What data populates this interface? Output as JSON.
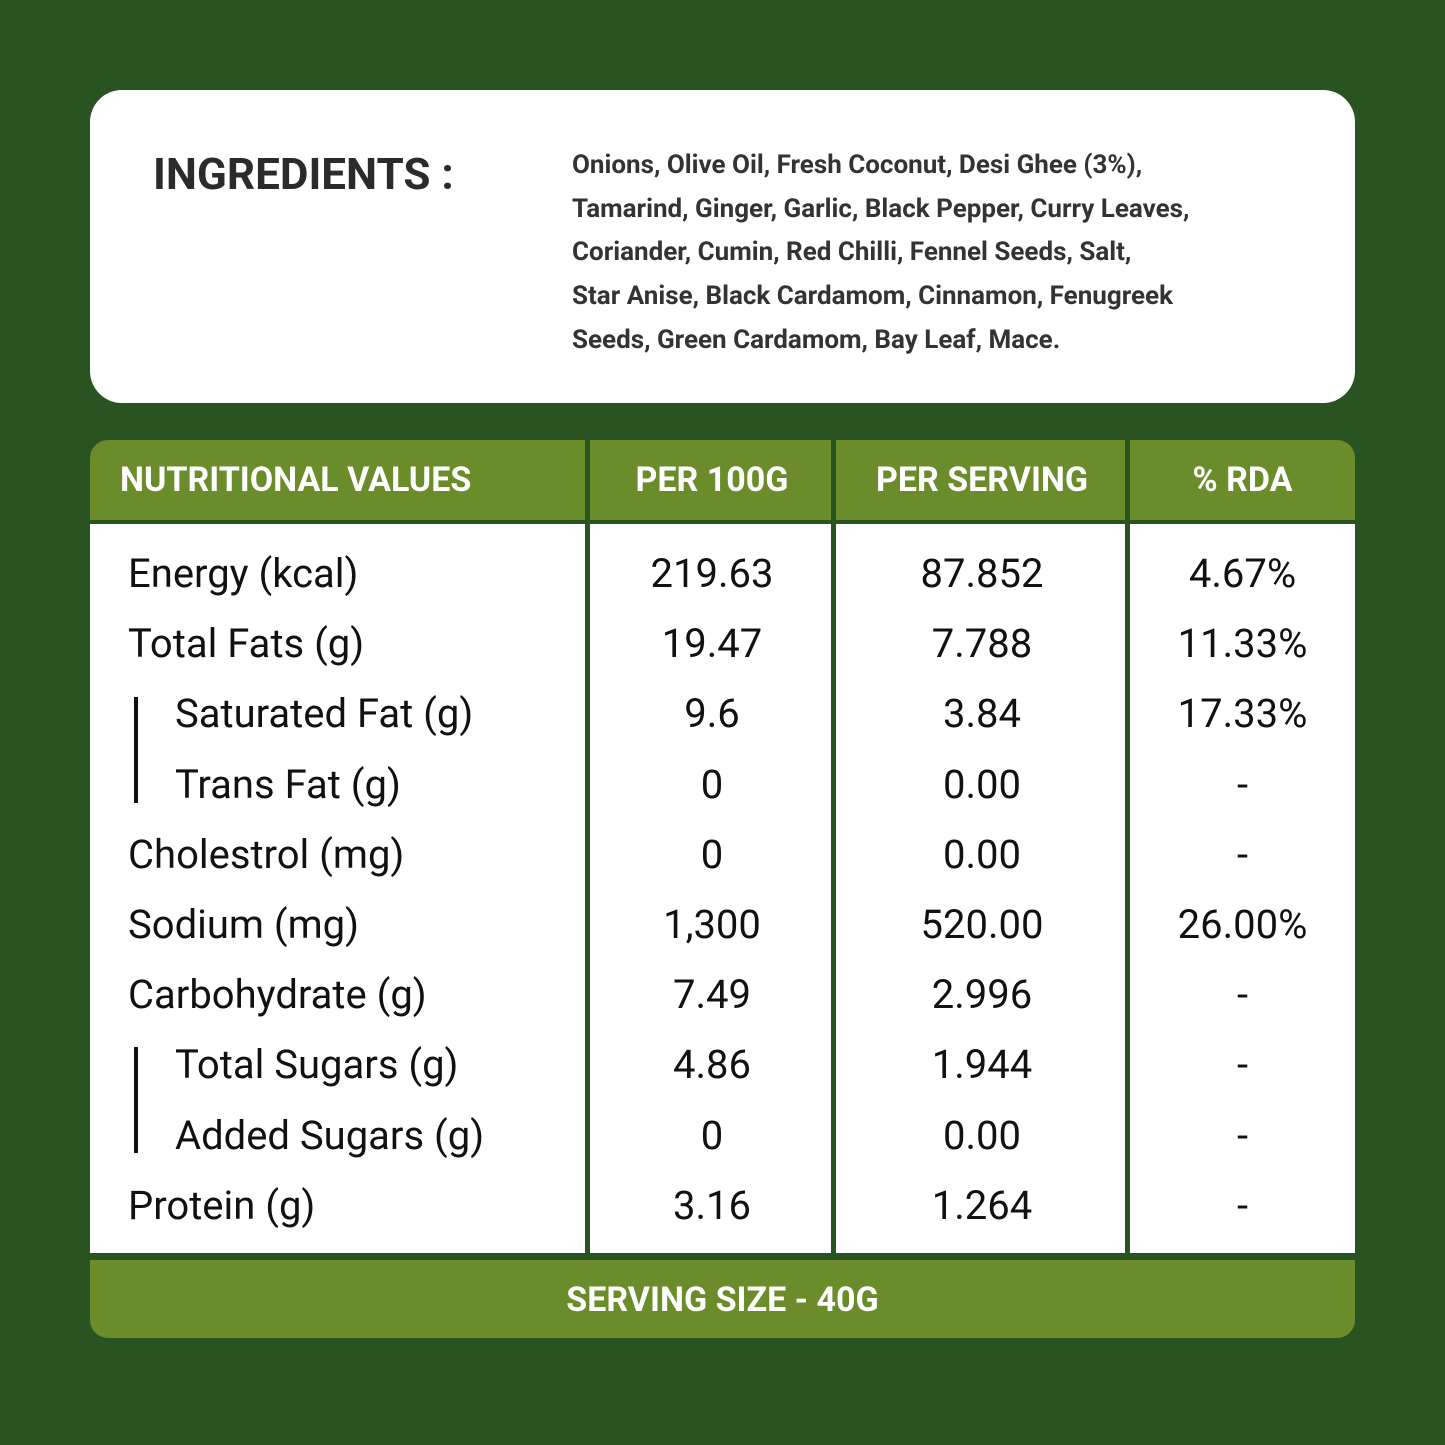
{
  "ingredients": {
    "title": "INGREDIENTS :",
    "lines": [
      "Onions, Olive Oil, Fresh Coconut, Desi Ghee (3%),",
      "Tamarind, Ginger, Garlic, Black Pepper, Curry Leaves,",
      "Coriander, Cumin, Red Chilli, Fennel Seeds, Salt,",
      "Star Anise, Black Cardamom, Cinnamon, Fenugreek",
      "Seeds, Green Cardamom, Bay Leaf, Mace."
    ]
  },
  "table": {
    "header": [
      "NUTRITIONAL VALUES",
      "PER 100G",
      "PER SERVING",
      "% RDA"
    ],
    "rows": [
      [
        "Energy (kcal)",
        "219.63",
        "87.852",
        "4.67%"
      ],
      [
        "Total Fats (g)",
        "19.47",
        "7.788",
        "11.33%"
      ],
      [
        "Saturated Fat (g)",
        "9.6",
        "3.84",
        "17.33%"
      ],
      [
        "Trans Fat (g)",
        "0",
        "0.00",
        "-"
      ],
      [
        "Cholestrol (mg)",
        "0",
        "0.00",
        "-"
      ],
      [
        "Sodium (mg)",
        "1,300",
        "520.00",
        "26.00%"
      ],
      [
        "Carbohydrate (g)",
        "7.49",
        "2.996",
        "-"
      ],
      [
        "Total Sugars (g)",
        "4.86",
        "1.944",
        "-"
      ],
      [
        "Added Sugars  (g)",
        "0",
        "0.00",
        "-"
      ],
      [
        "Protein (g)",
        "3.16",
        "1.264",
        "-"
      ]
    ],
    "footer": "SERVING SIZE - 40G"
  }
}
